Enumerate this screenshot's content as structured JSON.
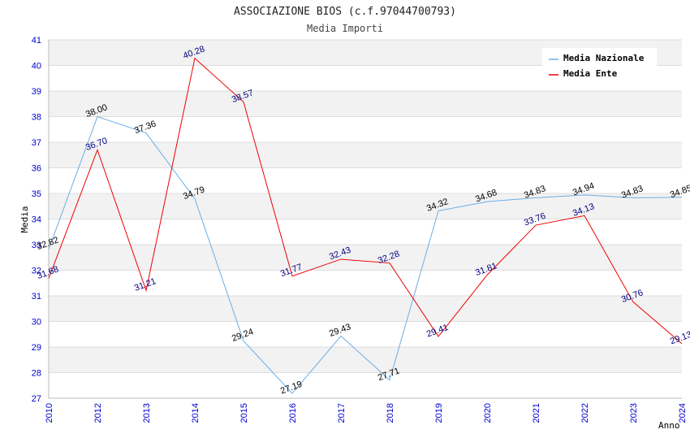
{
  "chart_data": {
    "type": "line",
    "title": "ASSOCIAZIONE BIOS (c.f.97044700793)",
    "subtitle": "Media Importi",
    "xlabel": "Anno",
    "ylabel": "Media",
    "x": [
      "2010",
      "2012",
      "2013",
      "2014",
      "2015",
      "2016",
      "2017",
      "2018",
      "2019",
      "2020",
      "2021",
      "2022",
      "2023",
      "2024"
    ],
    "ylim": [
      27,
      41
    ],
    "yticks": [
      27,
      28,
      29,
      30,
      31,
      32,
      33,
      34,
      35,
      36,
      37,
      38,
      39,
      40,
      41
    ],
    "grid": true,
    "legend_position": "top-right",
    "series": [
      {
        "name": "Media Nazionale",
        "color": "#6aaee6",
        "label_color": "#000000",
        "values": [
          32.82,
          38.0,
          37.36,
          34.79,
          29.24,
          27.19,
          29.43,
          27.71,
          34.32,
          34.68,
          34.83,
          34.94,
          34.83,
          34.85
        ],
        "labels": [
          "32.82",
          "38.00",
          "37.36",
          "34.79",
          "29.24",
          "27.19",
          "29.43",
          "27.71",
          "34.32",
          "34.68",
          "34.83",
          "34.94",
          "34.83",
          "34.85"
        ]
      },
      {
        "name": "Media Ente",
        "color": "#ee0000",
        "label_color": "#000080",
        "values": [
          31.68,
          36.7,
          31.21,
          40.28,
          38.57,
          31.77,
          32.43,
          32.28,
          29.41,
          31.81,
          33.76,
          34.13,
          30.76,
          29.13
        ],
        "labels": [
          "31.68",
          "36.70",
          "31.21",
          "40.28",
          "38.57",
          "31.77",
          "32.43",
          "32.28",
          "29.41",
          "31.81",
          "33.76",
          "34.13",
          "30.76",
          "29.13"
        ]
      }
    ]
  }
}
